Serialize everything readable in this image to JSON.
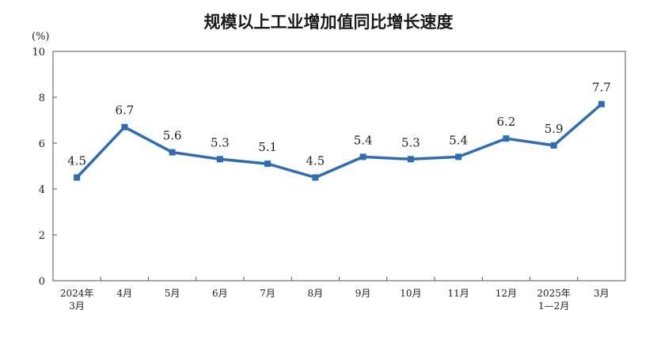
{
  "chart_data": {
    "type": "line",
    "title": "规模以上工业增加值同比增长速度",
    "ylabel": "(%)",
    "ylim": [
      0,
      10
    ],
    "yticks": [
      "0",
      "2",
      "4",
      "6",
      "8",
      "10"
    ],
    "categories": [
      "2024年\n3月",
      "4月",
      "5月",
      "6月",
      "7月",
      "8月",
      "9月",
      "10月",
      "11月",
      "12月",
      "2025年\n1—2月",
      "3月"
    ],
    "series": [
      {
        "values": [
          4.5,
          6.7,
          5.6,
          5.3,
          5.1,
          4.5,
          5.4,
          5.3,
          5.4,
          6.2,
          5.9,
          7.7
        ],
        "labels": [
          "4.5",
          "6.7",
          "5.6",
          "5.3",
          "5.1",
          "4.5",
          "5.4",
          "5.3",
          "5.4",
          "6.2",
          "5.9",
          "7.7"
        ]
      }
    ],
    "grid": false,
    "colors": {
      "line": "#2E6DB4",
      "marker": "#2E6DB4",
      "frame": "#555555"
    }
  }
}
